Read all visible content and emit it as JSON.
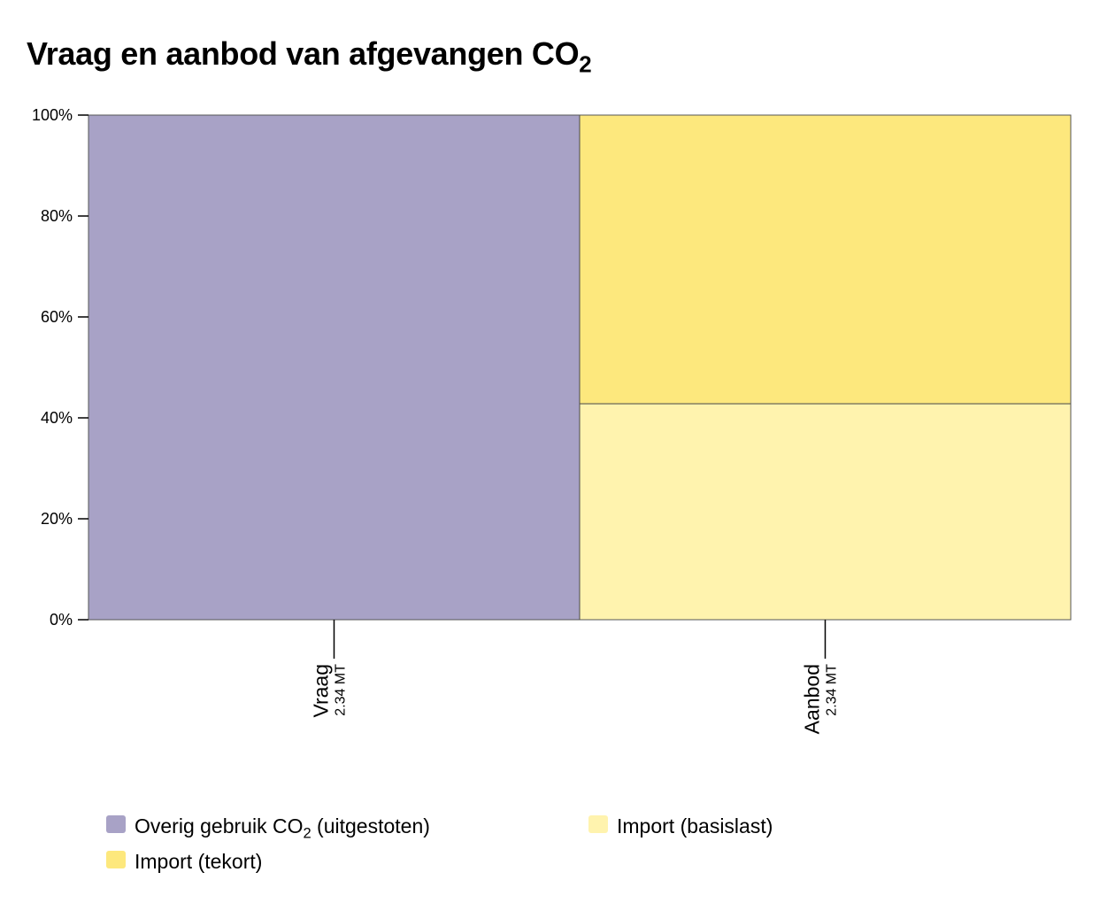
{
  "chart_data": {
    "type": "bar",
    "stacked": true,
    "normalized": true,
    "title": {
      "main": "Vraag en aanbod van afgevangen CO",
      "sub": "2"
    },
    "ylim": [
      0,
      100
    ],
    "yticks": [
      "0%",
      "20%",
      "40%",
      "60%",
      "80%",
      "100%"
    ],
    "grid": false,
    "legend_position": "bottom",
    "categories": [
      {
        "name": "Vraag",
        "total": "2.34 MT"
      },
      {
        "name": "Aanbod",
        "total": "2.34 MT"
      }
    ],
    "series": [
      {
        "name": "Overig gebruik CO",
        "name_sub": "2",
        "name_suffix": " (uitgestoten)",
        "color": "#a8a2c6",
        "values": [
          100,
          0
        ]
      },
      {
        "name": "Import (basislast)",
        "color": "#fff3ae",
        "values": [
          0,
          42.8
        ]
      },
      {
        "name": "Import (tekort)",
        "color": "#fde87d",
        "values": [
          0,
          57.2
        ]
      }
    ]
  }
}
